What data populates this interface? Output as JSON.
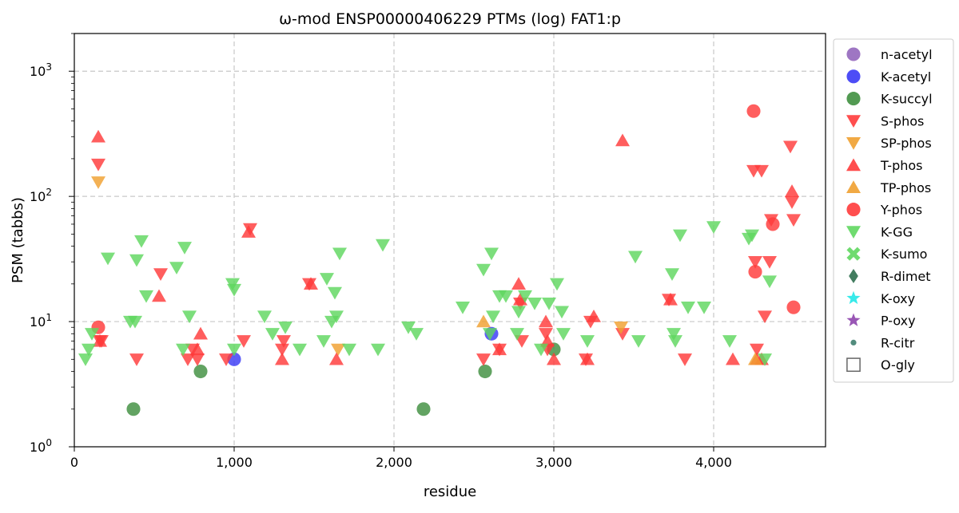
{
  "chart_data": {
    "type": "scatter",
    "title": "ω-mod ENSP00000406229 PTMs (log) FAT1:p",
    "xlabel": "residue",
    "ylabel": "PSM (tabbs)",
    "xlim": [
      0,
      4700
    ],
    "ylim": [
      1,
      2000
    ],
    "yscale": "log",
    "grid": true,
    "legend_position": "outside-right",
    "x_ticks": [
      {
        "value": 0,
        "label": "0"
      },
      {
        "value": 1000,
        "label": "1,000"
      },
      {
        "value": 2000,
        "label": "2,000"
      },
      {
        "value": 3000,
        "label": "3,000"
      },
      {
        "value": 4000,
        "label": "4,000"
      }
    ],
    "y_ticks": [
      {
        "value": 1,
        "base": "10",
        "exp": "0"
      },
      {
        "value": 10,
        "base": "10",
        "exp": "1"
      },
      {
        "value": 100,
        "base": "10",
        "exp": "2"
      },
      {
        "value": 1000,
        "base": "10",
        "exp": "3"
      }
    ],
    "series": [
      {
        "name": "n-acetyl",
        "marker": "circle",
        "color": "#9467bd",
        "points": []
      },
      {
        "name": "K-acetyl",
        "marker": "circle",
        "color": "#3a3af5",
        "points": [
          [
            1000,
            5
          ],
          [
            2610,
            8
          ]
        ]
      },
      {
        "name": "K-succyl",
        "marker": "circle",
        "color": "#3f8f3f",
        "points": [
          [
            370,
            2
          ],
          [
            790,
            4
          ],
          [
            2185,
            2
          ],
          [
            2570,
            4
          ],
          [
            3000,
            6
          ]
        ]
      },
      {
        "name": "S-phos",
        "marker": "triangle-down",
        "color": "#ff3b3b",
        "points": [
          [
            150,
            180
          ],
          [
            160,
            7
          ],
          [
            170,
            7
          ],
          [
            390,
            5
          ],
          [
            540,
            24
          ],
          [
            710,
            5
          ],
          [
            740,
            6
          ],
          [
            770,
            5
          ],
          [
            950,
            5
          ],
          [
            1060,
            7
          ],
          [
            1100,
            55
          ],
          [
            1300,
            6
          ],
          [
            1310,
            7
          ],
          [
            1470,
            20
          ],
          [
            2560,
            5
          ],
          [
            2660,
            6
          ],
          [
            2790,
            14
          ],
          [
            2800,
            7
          ],
          [
            2950,
            8
          ],
          [
            2960,
            6
          ],
          [
            3200,
            5
          ],
          [
            3230,
            10
          ],
          [
            3430,
            8
          ],
          [
            3720,
            15
          ],
          [
            3820,
            5
          ],
          [
            4250,
            160
          ],
          [
            4260,
            30
          ],
          [
            4270,
            6
          ],
          [
            4300,
            160
          ],
          [
            4320,
            11
          ],
          [
            4350,
            30
          ],
          [
            4360,
            65
          ],
          [
            4480,
            250
          ],
          [
            4490,
            90
          ],
          [
            4500,
            65
          ]
        ]
      },
      {
        "name": "SP-phos",
        "marker": "triangle-down",
        "color": "#f0a030",
        "points": [
          [
            150,
            130
          ],
          [
            1650,
            6
          ],
          [
            3420,
            9
          ]
        ]
      },
      {
        "name": "T-phos",
        "marker": "triangle-up",
        "color": "#ff3b3b",
        "points": [
          [
            150,
            300
          ],
          [
            160,
            7
          ],
          [
            530,
            16
          ],
          [
            770,
            6
          ],
          [
            790,
            8
          ],
          [
            1090,
            52
          ],
          [
            1300,
            5
          ],
          [
            1480,
            20
          ],
          [
            1640,
            5
          ],
          [
            2660,
            6
          ],
          [
            2780,
            20
          ],
          [
            2790,
            15
          ],
          [
            2950,
            10
          ],
          [
            2960,
            7
          ],
          [
            3000,
            5
          ],
          [
            3210,
            5
          ],
          [
            3250,
            11
          ],
          [
            3430,
            280
          ],
          [
            3730,
            15
          ],
          [
            4120,
            5
          ],
          [
            4270,
            5
          ],
          [
            4300,
            5
          ],
          [
            4490,
            110
          ]
        ]
      },
      {
        "name": "TP-phos",
        "marker": "triangle-up",
        "color": "#f0a030",
        "points": [
          [
            2560,
            10
          ],
          [
            4260,
            5
          ]
        ]
      },
      {
        "name": "Y-phos",
        "marker": "circle",
        "color": "#ff3b3b",
        "points": [
          [
            150,
            9
          ],
          [
            4250,
            480
          ],
          [
            4260,
            25
          ],
          [
            4370,
            60
          ],
          [
            4500,
            13
          ]
        ]
      },
      {
        "name": "K-GG",
        "marker": "triangle-down",
        "color": "#5fd75f",
        "points": [
          [
            70,
            5
          ],
          [
            90,
            6
          ],
          [
            110,
            8
          ],
          [
            210,
            32
          ],
          [
            350,
            10
          ],
          [
            380,
            10
          ],
          [
            390,
            31
          ],
          [
            420,
            44
          ],
          [
            450,
            16
          ],
          [
            640,
            27
          ],
          [
            680,
            6
          ],
          [
            690,
            39
          ],
          [
            720,
            11
          ],
          [
            990,
            20
          ],
          [
            1000,
            18
          ],
          [
            1000,
            6
          ],
          [
            1190,
            11
          ],
          [
            1240,
            8
          ],
          [
            1320,
            9
          ],
          [
            1410,
            6
          ],
          [
            1560,
            7
          ],
          [
            1580,
            22
          ],
          [
            1610,
            10
          ],
          [
            1630,
            17
          ],
          [
            1640,
            11
          ],
          [
            1660,
            35
          ],
          [
            1720,
            6
          ],
          [
            1900,
            6
          ],
          [
            1930,
            41
          ],
          [
            2090,
            9
          ],
          [
            2140,
            8
          ],
          [
            2430,
            13
          ],
          [
            2560,
            26
          ],
          [
            2600,
            8
          ],
          [
            2610,
            35
          ],
          [
            2620,
            11
          ],
          [
            2660,
            16
          ],
          [
            2700,
            16
          ],
          [
            2770,
            8
          ],
          [
            2780,
            12
          ],
          [
            2820,
            16
          ],
          [
            2880,
            14
          ],
          [
            2920,
            6
          ],
          [
            2970,
            14
          ],
          [
            3020,
            20
          ],
          [
            3050,
            12
          ],
          [
            3060,
            8
          ],
          [
            3210,
            7
          ],
          [
            3510,
            33
          ],
          [
            3530,
            7
          ],
          [
            3740,
            24
          ],
          [
            3750,
            8
          ],
          [
            3760,
            7
          ],
          [
            3790,
            49
          ],
          [
            3840,
            13
          ],
          [
            3940,
            13
          ],
          [
            4000,
            57
          ],
          [
            4100,
            7
          ],
          [
            4220,
            46
          ],
          [
            4240,
            49
          ],
          [
            4320,
            5
          ],
          [
            4350,
            21
          ]
        ]
      },
      {
        "name": "K-sumo",
        "marker": "x",
        "color": "#5fd75f",
        "points": []
      },
      {
        "name": "R-dimet",
        "marker": "diamond",
        "color": "#2f6f4f",
        "points": []
      },
      {
        "name": "K-oxy",
        "marker": "star",
        "color": "#22e8e8",
        "points": []
      },
      {
        "name": "P-oxy",
        "marker": "star",
        "color": "#8e44ad",
        "points": []
      },
      {
        "name": "R-citr",
        "marker": "small-circle",
        "color": "#3f7f6f",
        "points": []
      },
      {
        "name": "O-gly",
        "marker": "square-open",
        "color": "#555555",
        "points": []
      }
    ]
  }
}
